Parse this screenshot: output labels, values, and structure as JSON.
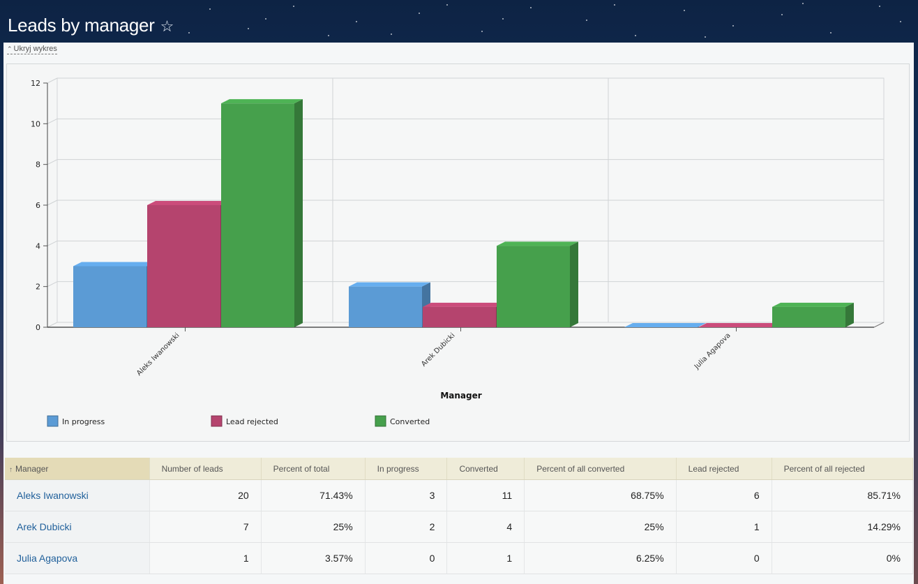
{
  "page": {
    "title": "Leads by manager",
    "toggle_chart_label": "Ukryj wykres"
  },
  "icons": {
    "favorite": "star-outline-icon",
    "toggle": "caret-up-icon",
    "sort": "arrow-up-icon"
  },
  "chart_data": {
    "type": "bar",
    "categories": [
      "Aleks Iwanowski",
      "Arek Dubicki",
      "Julia Agapova"
    ],
    "series": [
      {
        "name": "In progress",
        "color": "#5b9bd5",
        "values": [
          3,
          2,
          0
        ]
      },
      {
        "name": "Lead rejected",
        "color": "#b5446e",
        "values": [
          6,
          1,
          0
        ]
      },
      {
        "name": "Converted",
        "color": "#46a04c",
        "values": [
          11,
          4,
          1
        ]
      }
    ],
    "xlabel": "Manager",
    "ylabel": "",
    "ylim": [
      0,
      12
    ],
    "yticks": [
      0,
      2,
      4,
      6,
      8,
      10,
      12
    ],
    "grid": true,
    "legend_position": "bottom-left",
    "style": "3d"
  },
  "table": {
    "sort_column": "Manager",
    "sort_direction": "asc",
    "columns": [
      "Manager",
      "Number of leads",
      "Percent of total",
      "In progress",
      "Converted",
      "Percent of all converted",
      "Lead rejected",
      "Percent of all rejected"
    ],
    "rows": [
      [
        "Aleks Iwanowski",
        "20",
        "71.43%",
        "3",
        "11",
        "68.75%",
        "6",
        "85.71%"
      ],
      [
        "Arek Dubicki",
        "7",
        "25%",
        "2",
        "4",
        "25%",
        "1",
        "14.29%"
      ],
      [
        "Julia Agapova",
        "1",
        "3.57%",
        "0",
        "1",
        "6.25%",
        "0",
        "0%"
      ]
    ]
  }
}
